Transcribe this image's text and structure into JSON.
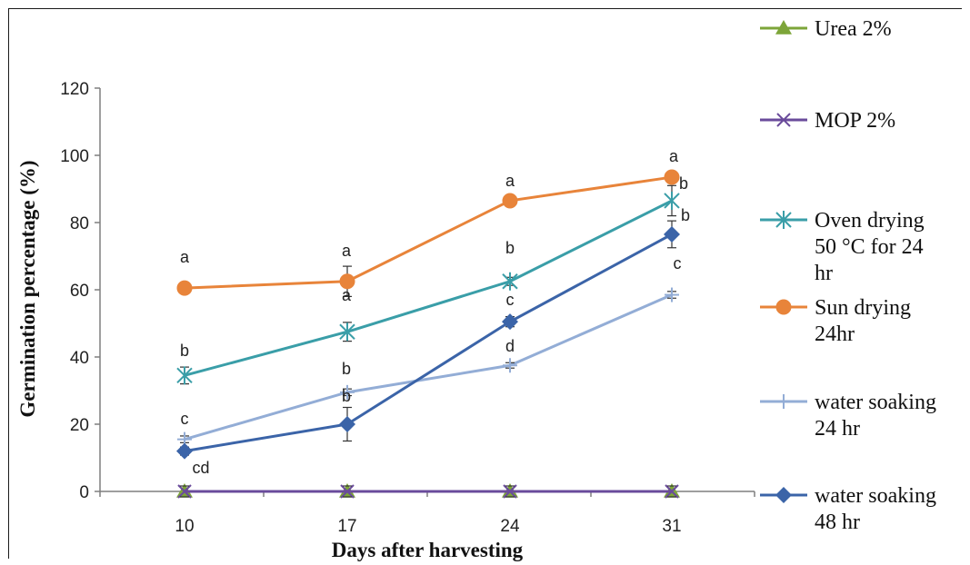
{
  "chart_data": {
    "type": "line",
    "xlabel": "Days after harvesting",
    "ylabel": "Germination percentage (%)",
    "categories": [
      "10",
      "17",
      "24",
      "31"
    ],
    "ylim": [
      0,
      120
    ],
    "yticks": [
      "0",
      "20",
      "40",
      "60",
      "80",
      "100",
      "120"
    ],
    "grid": false,
    "legend_position": "right",
    "series": [
      {
        "name": "Urea 2%",
        "label_lines": [
          "Urea 2%"
        ],
        "color": "#7da539",
        "marker": "triangle",
        "values": [
          0,
          0,
          0,
          0
        ],
        "err": [
          0,
          0,
          0,
          0
        ],
        "letters": [
          "",
          "",
          "",
          ""
        ]
      },
      {
        "name": "MOP 2%",
        "label_lines": [
          "MOP 2%"
        ],
        "color": "#6a4b9b",
        "marker": "x",
        "values": [
          0,
          0,
          0,
          0
        ],
        "err": [
          0,
          0,
          0,
          0
        ],
        "letters": [
          "",
          "",
          "",
          ""
        ]
      },
      {
        "name": "Oven drying 50 °C for 24 hr",
        "label_lines": [
          "Oven drying",
          "50 °C for 24",
          "hr"
        ],
        "color": "#3a9ea8",
        "marker": "star",
        "values": [
          34.5,
          47.5,
          62.5,
          86.5
        ],
        "err": [
          2.5,
          2.8,
          1.2,
          4.5
        ],
        "letters": [
          "b",
          "a",
          "b",
          "b"
        ]
      },
      {
        "name": "Sun drying 24hr",
        "label_lines": [
          "Sun drying",
          "24hr"
        ],
        "color": "#e8843a",
        "marker": "circle",
        "values": [
          60.5,
          62.5,
          86.5,
          93.5
        ],
        "err": [
          0,
          4.5,
          0,
          0
        ],
        "letters": [
          "a",
          "a",
          "a",
          "a"
        ]
      },
      {
        "name": "water soaking 24 hr",
        "label_lines": [
          "water soaking",
          "24 hr"
        ],
        "color": "#93add6",
        "marker": "plus",
        "values": [
          15.5,
          29.5,
          37.5,
          58.5
        ],
        "err": [
          1.0,
          1.0,
          0.8,
          1.0
        ],
        "letters": [
          "c",
          "b",
          "d",
          "c"
        ]
      },
      {
        "name": "water soaking 48 hr",
        "label_lines": [
          "water soaking",
          "48 hr"
        ],
        "color": "#3b64a8",
        "marker": "diamond",
        "values": [
          12.0,
          20.0,
          50.5,
          76.5
        ],
        "err": [
          1.2,
          5.0,
          1.5,
          4.0
        ],
        "letters": [
          "cd",
          "b",
          "c",
          "b"
        ]
      }
    ]
  }
}
